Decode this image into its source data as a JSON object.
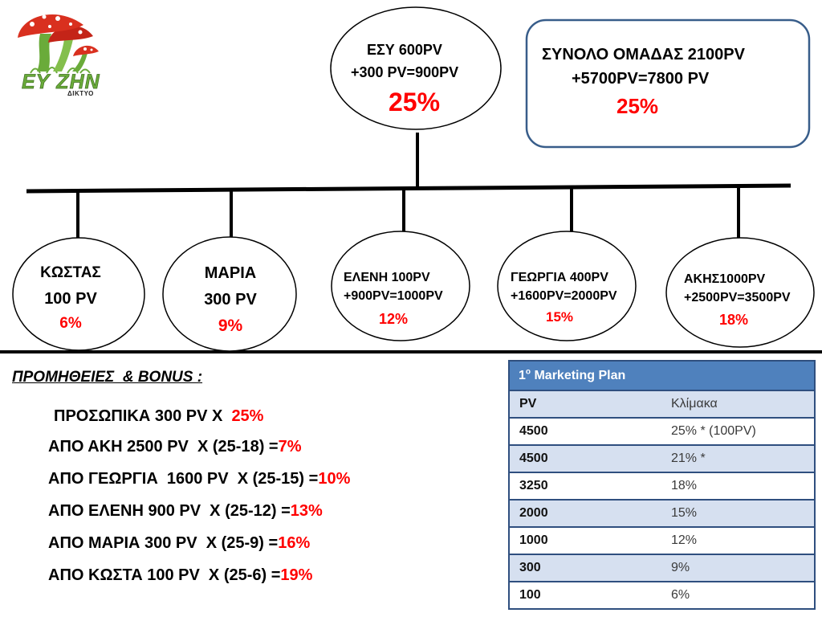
{
  "logo": {
    "wordmark": "ΕΥ ΖΗΝ",
    "subtitle": "ΔΙΚΤΥΟ",
    "icon": "mushroom-logo"
  },
  "colors": {
    "accent_red": "#ff0000",
    "total_box_border": "#385d8a",
    "table_header": "#4f81bd",
    "table_band": "#d6e0f0",
    "table_border": "#2f4f7f",
    "logo_green": "#6aab3a",
    "logo_red": "#d9301f"
  },
  "top_node": {
    "line1": "ΕΣΥ 600PV",
    "line2": "+300 PV=900PV",
    "percent": "25%"
  },
  "team_total": {
    "line1": "ΣΥΝΟΛΟ ΟΜΑΔΑΣ 2100PV",
    "line2": "+5700PV=7800 PV",
    "percent": "25%"
  },
  "members": [
    {
      "line1": "ΚΩΣΤΑΣ",
      "line2": "100 PV",
      "percent": "6%"
    },
    {
      "line1": "ΜΑΡΙΑ",
      "line2": "300 PV",
      "percent": "9%"
    },
    {
      "line1": "ΕΛΕΝΗ 100PV",
      "line2": "+900PV=1000PV",
      "percent": "12%"
    },
    {
      "line1": "ΓΕΩΡΓΙΑ 400PV",
      "line2": "+1600PV=2000PV",
      "percent": "15%"
    },
    {
      "line1": "ΑΚΗΣ1000PV",
      "line2": "+2500PV=3500PV",
      "percent": "18%"
    }
  ],
  "commissions": {
    "title": "ΠΡΟΜΗΘΕΙΕΣ  & BONUS :",
    "lines": [
      {
        "text": "ΠΡΟΣΩΠΙΚΑ 300 PV X  ",
        "value": "25%"
      },
      {
        "text": "ΑΠΟ ΑΚΗ 2500 PV  X (25-18) =",
        "value": "7%"
      },
      {
        "text": "ΑΠΟ ΓΕΩΡΓΙΑ  1600 PV  X (25-15) =",
        "value": "10%"
      },
      {
        "text": "ΑΠΟ ΕΛΕΝΗ 900 PV  X (25-12) =",
        "value": "13%"
      },
      {
        "text": "ΑΠΟ ΜΑΡΙΑ 300 PV  X (25-9) =",
        "value": "16%"
      },
      {
        "text": "ΑΠΟ ΚΩΣΤΑ 100 PV  X (25-6) =",
        "value": "19%"
      }
    ]
  },
  "plan_table": {
    "title_num": "1",
    "title_sup": "ο",
    "title_rest": " Marketing Plan",
    "columns": [
      "PV",
      "Κλίμακα"
    ],
    "rows": [
      {
        "pv": "4500",
        "scale": "25% * (100PV)"
      },
      {
        "pv": "4500",
        "scale": "21% *"
      },
      {
        "pv": "3250",
        "scale": "18%"
      },
      {
        "pv": "2000",
        "scale": "15%"
      },
      {
        "pv": "1000",
        "scale": "12%"
      },
      {
        "pv": "300",
        "scale": "9%"
      },
      {
        "pv": "100",
        "scale": "6%"
      }
    ]
  }
}
